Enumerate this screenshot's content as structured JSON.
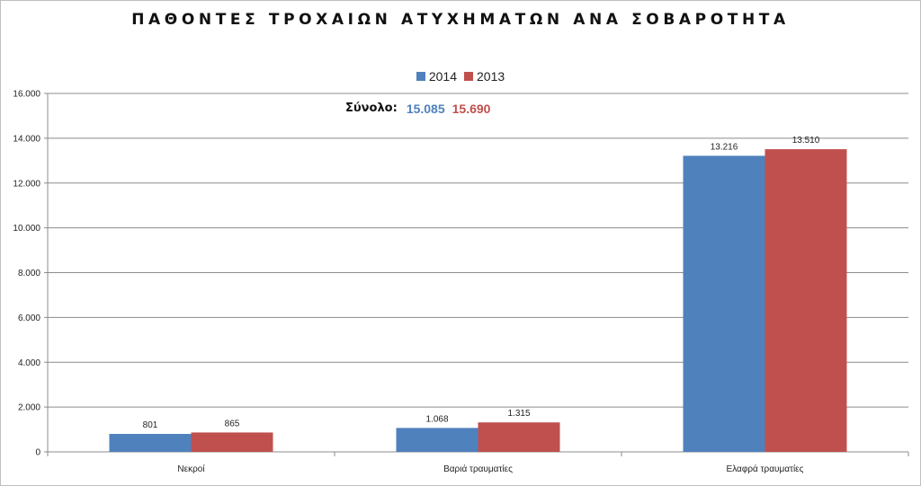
{
  "chart_data": {
    "type": "bar",
    "title": "ΠΑΘΟΝΤΕΣ ΤΡΟΧΑΙΩΝ ΑΤΥΧΗΜΑΤΩΝ ΑΝΑ ΣΟΒΑΡΟΤΗΤΑ",
    "categories": [
      "Νεκροί",
      "Βαριά τραυματίες",
      "Ελαφρά τραυματίες"
    ],
    "series": [
      {
        "name": "2014",
        "values": [
          801,
          1068,
          13216
        ],
        "labels": [
          "801",
          "1.068",
          "13.216"
        ],
        "color": "#4f81bd"
      },
      {
        "name": "2013",
        "values": [
          865,
          1315,
          13510
        ],
        "labels": [
          "865",
          "1.315",
          "13.510"
        ],
        "color": "#c0504d"
      }
    ],
    "ylim": [
      0,
      16000
    ],
    "yticks": [
      0,
      2000,
      4000,
      6000,
      8000,
      10000,
      12000,
      14000,
      16000
    ],
    "ytick_labels": [
      "0",
      "2.000",
      "4.000",
      "6.000",
      "8.000",
      "10.000",
      "12.000",
      "14.000",
      "16.000"
    ],
    "grid": true,
    "legend_position": "top",
    "xlabel": "",
    "ylabel": ""
  },
  "totals": {
    "label": "Σύνολο:",
    "value_2014": "15.085",
    "value_2013": "15.690"
  }
}
